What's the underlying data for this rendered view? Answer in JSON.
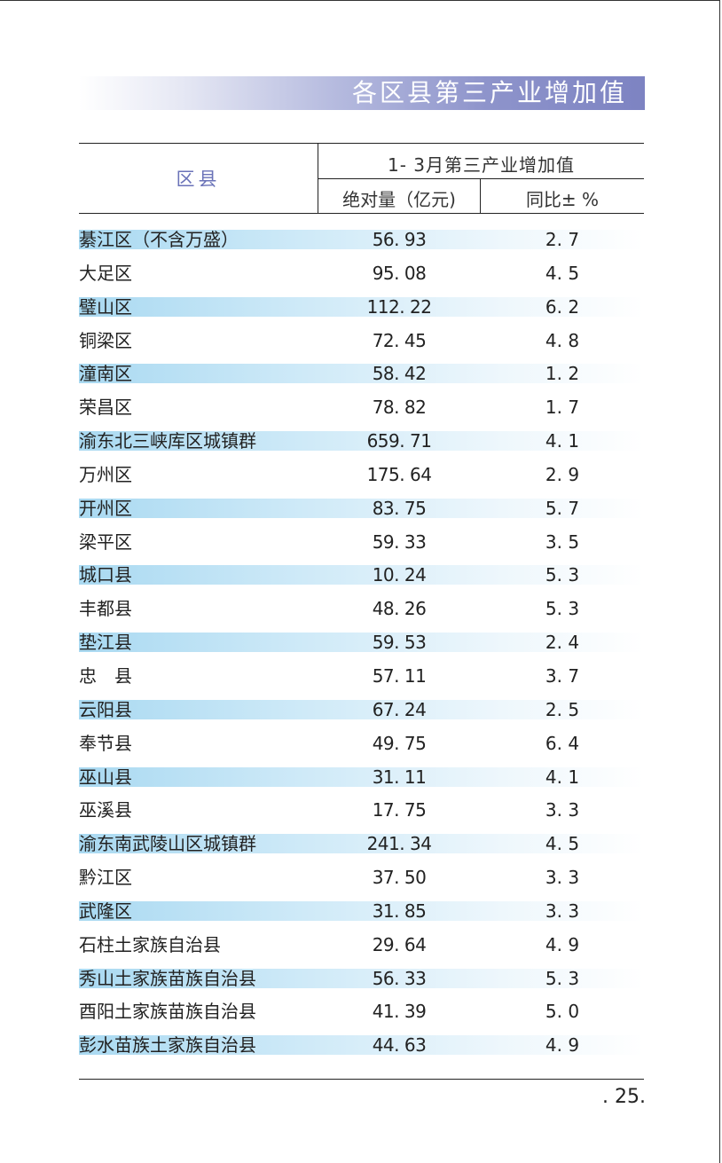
{
  "banner": {
    "title": "各区县第三产业增加值"
  },
  "table": {
    "header": {
      "district": "区县",
      "group": "1- 3月第三产业增加值",
      "abs": "绝对量（亿元)",
      "yoy": "同比± %"
    },
    "rows": [
      {
        "name": "綦江区（不含万盛）",
        "abs": "56. 93",
        "yoy": "2. 7",
        "shaded": true
      },
      {
        "name": "大足区",
        "abs": "95. 08",
        "yoy": "4. 5",
        "shaded": false
      },
      {
        "name": "璧山区",
        "abs": "112. 22",
        "yoy": "6. 2",
        "shaded": true
      },
      {
        "name": "铜梁区",
        "abs": "72. 45",
        "yoy": "4. 8",
        "shaded": false
      },
      {
        "name": "潼南区",
        "abs": "58. 42",
        "yoy": "1. 2",
        "shaded": true
      },
      {
        "name": "荣昌区",
        "abs": "78. 82",
        "yoy": "1. 7",
        "shaded": false
      },
      {
        "name": "渝东北三峡库区城镇群",
        "abs": "659. 71",
        "yoy": "4. 1",
        "shaded": true
      },
      {
        "name": "万州区",
        "abs": "175. 64",
        "yoy": "2. 9",
        "shaded": false
      },
      {
        "name": "开州区",
        "abs": "83. 75",
        "yoy": "5. 7",
        "shaded": true
      },
      {
        "name": "梁平区",
        "abs": "59. 33",
        "yoy": "3. 5",
        "shaded": false
      },
      {
        "name": "城口县",
        "abs": "10. 24",
        "yoy": "5. 3",
        "shaded": true
      },
      {
        "name": "丰都县",
        "abs": "48. 26",
        "yoy": "5. 3",
        "shaded": false
      },
      {
        "name": "垫江县",
        "abs": "59. 53",
        "yoy": "2. 4",
        "shaded": true
      },
      {
        "name": "忠　县",
        "abs": "57. 11",
        "yoy": "3. 7",
        "shaded": false
      },
      {
        "name": "云阳县",
        "abs": "67. 24",
        "yoy": "2. 5",
        "shaded": true
      },
      {
        "name": "奉节县",
        "abs": "49. 75",
        "yoy": "6. 4",
        "shaded": false
      },
      {
        "name": "巫山县",
        "abs": "31. 11",
        "yoy": "4. 1",
        "shaded": true
      },
      {
        "name": "巫溪县",
        "abs": "17. 75",
        "yoy": "3. 3",
        "shaded": false
      },
      {
        "name": "渝东南武陵山区城镇群",
        "abs": "241. 34",
        "yoy": "4. 5",
        "shaded": true
      },
      {
        "name": "黔江区",
        "abs": "37. 50",
        "yoy": "3. 3",
        "shaded": false
      },
      {
        "name": "武隆区",
        "abs": "31. 85",
        "yoy": "3. 3",
        "shaded": true
      },
      {
        "name": "石柱土家族自治县",
        "abs": "29. 64",
        "yoy": "4. 9",
        "shaded": false
      },
      {
        "name": "秀山土家族苗族自治县",
        "abs": "56. 33",
        "yoy": "5. 3",
        "shaded": true
      },
      {
        "name": "酉阳土家族苗族自治县",
        "abs": "41. 39",
        "yoy": "5. 0",
        "shaded": false
      },
      {
        "name": "彭水苗族土家族自治县",
        "abs": "44. 63",
        "yoy": "4. 9",
        "shaded": true
      }
    ]
  },
  "footer": {
    "page_number": ". 25."
  }
}
